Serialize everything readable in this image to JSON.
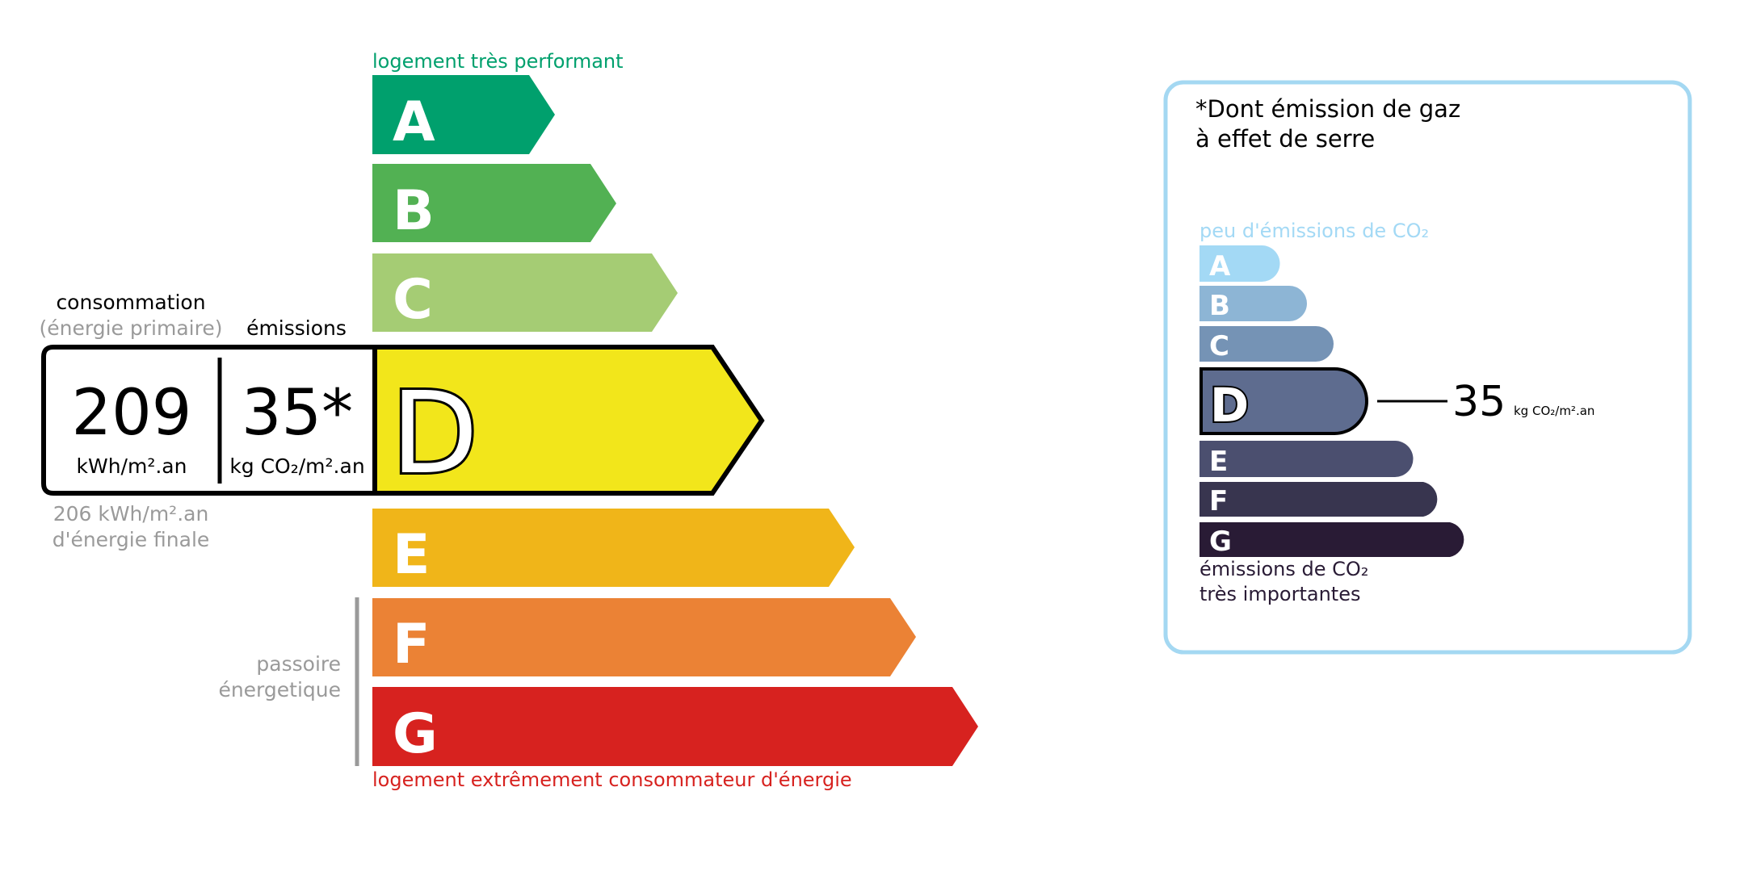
{
  "energy_label": {
    "top_caption": "logement très performant",
    "bottom_caption": "logement extrêmement consommateur d'énergie",
    "passoire_line1": "passoire",
    "passoire_line2": "énergetique",
    "classes": [
      {
        "letter": "A",
        "color": "#00a06d"
      },
      {
        "letter": "B",
        "color": "#52b153"
      },
      {
        "letter": "C",
        "color": "#a5cc74"
      },
      {
        "letter": "D",
        "color": "#f2e61b"
      },
      {
        "letter": "E",
        "color": "#f0b519"
      },
      {
        "letter": "F",
        "color": "#eb8235"
      },
      {
        "letter": "G",
        "color": "#d7221f"
      }
    ],
    "current_class": "D",
    "consumption_heading": "consommation",
    "consumption_subheading": "(énergie primaire)",
    "emissions_heading": "émissions",
    "consumption_value": "209",
    "consumption_unit": "kWh/m².an",
    "emissions_value": "35*",
    "emissions_unit": "kg CO₂/m².an",
    "final_energy_line1": "206 kWh/m².an",
    "final_energy_line2": "d'énergie finale"
  },
  "ges_panel": {
    "title_line1": "*Dont émission de gaz",
    "title_line2": "à effet de serre",
    "top_caption": "peu d'émissions de CO₂",
    "bottom_caption_line1": "émissions de CO₂",
    "bottom_caption_line2": "très importantes",
    "classes": [
      {
        "letter": "A",
        "color": "#a3d9f5"
      },
      {
        "letter": "B",
        "color": "#8db5d5"
      },
      {
        "letter": "C",
        "color": "#7593b5"
      },
      {
        "letter": "D",
        "color": "#5e6c8f"
      },
      {
        "letter": "E",
        "color": "#4b4f6f"
      },
      {
        "letter": "F",
        "color": "#38354f"
      },
      {
        "letter": "G",
        "color": "#291b35"
      }
    ],
    "current_class": "D",
    "value": "35",
    "unit": "kg CO₂/m².an",
    "border_color": "#a4d8f2"
  }
}
